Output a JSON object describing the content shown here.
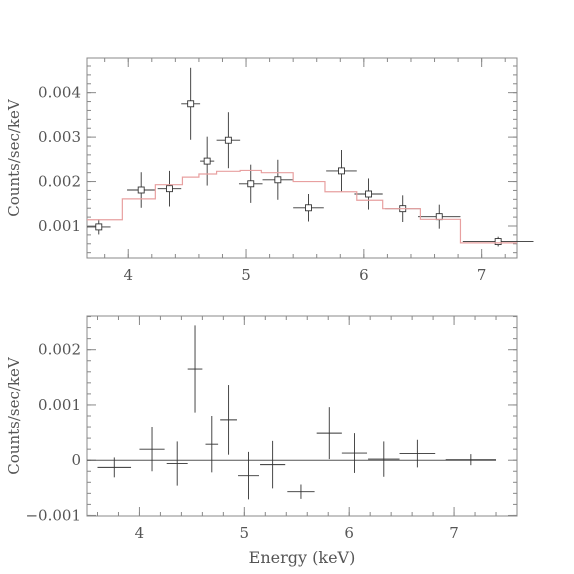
{
  "chart_data": [
    {
      "type": "scatter",
      "title": "",
      "ylabel": "Counts/sec/keV",
      "xlabel": "",
      "xlim": [
        3.65,
        7.3
      ],
      "ylim": [
        0.00028,
        0.00478
      ],
      "xticks": [
        4,
        5,
        6,
        7
      ],
      "xtick_labels": [
        "4",
        "5",
        "6",
        "7"
      ],
      "yticks": [
        0.001,
        0.002,
        0.003,
        0.004
      ],
      "ytick_labels": [
        "0.001",
        "0.002",
        "0.003",
        "0.004"
      ],
      "series": [
        {
          "kind": "data",
          "color": "#333333",
          "x": [
            3.75,
            4.11,
            4.35,
            4.53,
            4.67,
            4.85,
            5.04,
            5.27,
            5.53,
            5.81,
            6.04,
            6.33,
            6.64,
            7.14
          ],
          "xerr": [
            0.1,
            0.12,
            0.1,
            0.08,
            0.06,
            0.1,
            0.1,
            0.13,
            0.13,
            0.13,
            0.12,
            0.15,
            0.18,
            0.3
          ],
          "y": [
            0.00098,
            0.00181,
            0.00184,
            0.00375,
            0.00246,
            0.00293,
            0.00195,
            0.00204,
            0.00141,
            0.00224,
            0.00172,
            0.00139,
            0.00121,
            0.00065
          ],
          "yerr": [
            0.00017,
            0.0004,
            0.0004,
            0.00081,
            0.00055,
            0.00063,
            0.00043,
            0.00045,
            0.00031,
            0.00047,
            0.00035,
            0.0003,
            0.00027,
            0.00011
          ]
        },
        {
          "kind": "model",
          "color": "#e8a0a0",
          "step_edges": [
            3.65,
            3.95,
            4.23,
            4.46,
            4.6,
            4.75,
            4.95,
            5.13,
            5.4,
            5.67,
            5.94,
            6.16,
            6.48,
            6.82,
            7.3
          ],
          "step_values": [
            0.00114,
            0.00161,
            0.00193,
            0.0021,
            0.00217,
            0.00223,
            0.00225,
            0.0022,
            0.002,
            0.00177,
            0.00158,
            0.00139,
            0.00115,
            0.00062
          ]
        }
      ]
    },
    {
      "type": "scatter",
      "title": "",
      "ylabel": "Counts/sec/keV",
      "xlabel": "Energy (keV)",
      "xlim": [
        3.5,
        7.6
      ],
      "ylim": [
        -0.00101,
        0.00261
      ],
      "xticks": [
        4,
        5,
        6,
        7
      ],
      "xtick_labels": [
        "4",
        "5",
        "6",
        "7"
      ],
      "yticks": [
        -0.001,
        0,
        0.001,
        0.002
      ],
      "ytick_labels": [
        "−0.001",
        "0",
        "0.001",
        "0.002"
      ],
      "zero_line": true,
      "zero_line_x": [
        3.5,
        7.4
      ],
      "series": [
        {
          "kind": "residuals",
          "color": "#333333",
          "x": [
            3.76,
            4.12,
            4.36,
            4.53,
            4.69,
            4.85,
            5.04,
            5.27,
            5.54,
            5.81,
            6.05,
            6.33,
            6.65,
            7.16
          ],
          "xerr": [
            0.16,
            0.12,
            0.1,
            0.07,
            0.06,
            0.08,
            0.1,
            0.12,
            0.13,
            0.12,
            0.12,
            0.15,
            0.17,
            0.24
          ],
          "y": [
            -0.00013,
            0.0002,
            -6e-05,
            0.00165,
            0.00029,
            0.00073,
            -0.00028,
            -8e-05,
            -0.00057,
            0.00049,
            0.00013,
            2e-05,
            0.00012,
            1e-05
          ],
          "yerr": [
            0.00018,
            0.0004,
            0.0004,
            0.00079,
            0.00051,
            0.00063,
            0.00043,
            0.00043,
            0.00013,
            0.00047,
            0.00036,
            0.00032,
            0.00025,
            0.0001
          ]
        }
      ]
    }
  ]
}
